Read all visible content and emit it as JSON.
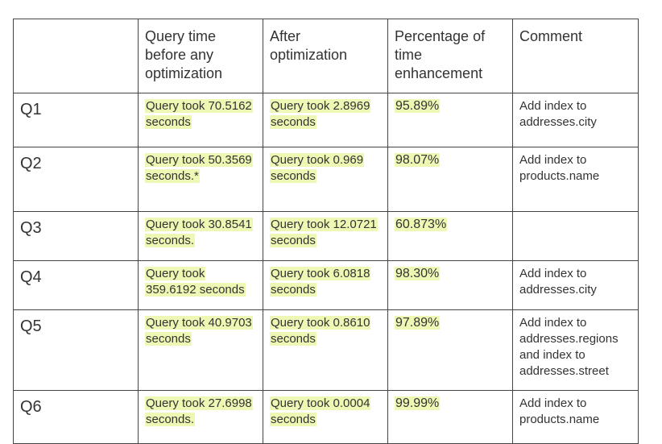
{
  "table": {
    "headers": [
      "",
      "Query time before any optimization",
      "After optimization",
      "Percentage of time enhancement",
      "Comment"
    ],
    "rows": [
      {
        "query": "Q1",
        "before": "Query took 70.5162 seconds",
        "after": "Query took 2.8969 seconds",
        "percent": "95.89%",
        "comment": "Add index to addresses.city"
      },
      {
        "query": "Q2",
        "before": "Query took 50.3569 seconds.*",
        "after": "Query took 0.969 seconds",
        "percent": "98.07%",
        "comment": "Add index to products.name"
      },
      {
        "query": "Q3",
        "before": "Query took 30.8541 seconds.",
        "after": "Query took 12.0721 seconds",
        "percent": "60.873%",
        "comment": ""
      },
      {
        "query": "Q4",
        "before": "Query took 359.6192 seconds",
        "after": " Query took 6.0818 seconds",
        "percent": "98.30%",
        "comment": "Add index to addresses.city"
      },
      {
        "query": "Q5",
        "before": "Query took 40.9703 seconds",
        "after": "Query took 0.8610 seconds",
        "percent": "97.89%",
        "comment": "Add index to addresses.regions and index to addresses.street"
      },
      {
        "query": "Q6",
        "before": "Query took 27.6998 seconds.",
        "after": "Query took 0.0004 seconds",
        "percent": "99.99%",
        "comment": "Add index to products.name"
      }
    ]
  },
  "colors": {
    "highlight": "#eef7b4",
    "border": "#444444",
    "text": "#333333"
  }
}
